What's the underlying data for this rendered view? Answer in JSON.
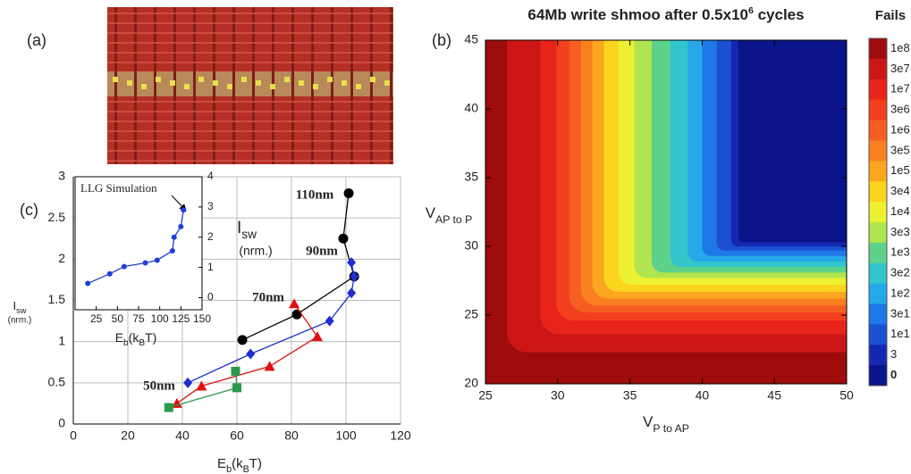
{
  "panel_labels": [
    "(a)",
    "(b)",
    "(c)"
  ],
  "chart_data": [
    {
      "type": "contour",
      "title": [
        {
          "text": "64Mb write shmoo after 0.5x10"
        },
        {
          "sup": "6"
        },
        {
          "text": " cycles"
        }
      ],
      "x_label": [
        {
          "text": "V"
        },
        {
          "sub": "P to AP"
        }
      ],
      "y_label": [
        {
          "text": "V"
        },
        {
          "sub": "AP to P"
        }
      ],
      "xlim": [
        25,
        50
      ],
      "ylim": [
        20,
        45
      ],
      "xticks": [
        25,
        30,
        35,
        40,
        45,
        50
      ],
      "yticks": [
        20,
        25,
        30,
        35,
        40,
        45
      ],
      "colorbar_title": "Fails",
      "levels": [
        {
          "label": "1e8",
          "color": "#9e0c0c"
        },
        {
          "label": "3e7",
          "color": "#cc1616"
        },
        {
          "label": "1e7",
          "color": "#e8231a"
        },
        {
          "label": "3e6",
          "color": "#f2401e"
        },
        {
          "label": "1e6",
          "color": "#f65e22"
        },
        {
          "label": "3e5",
          "color": "#f98020"
        },
        {
          "label": "1e5",
          "color": "#fba61e"
        },
        {
          "label": "3e4",
          "color": "#fbd41e"
        },
        {
          "label": "1e4",
          "color": "#eef032"
        },
        {
          "label": "3e3",
          "color": "#b0e450"
        },
        {
          "label": "1e3",
          "color": "#5ed28a"
        },
        {
          "label": "3e2",
          "color": "#30c6cc"
        },
        {
          "label": "1e2",
          "color": "#26a8e8"
        },
        {
          "label": "3e1",
          "color": "#1e78e6"
        },
        {
          "label": "1e1",
          "color": "#1c50d2"
        },
        {
          "label": "3",
          "color": "#1428b0"
        },
        {
          "label": "0",
          "color": "#0a1488"
        }
      ],
      "boundaries": [
        {
          "x": 26.5,
          "y": 22.3
        },
        {
          "x": 28.8,
          "y": 23.6
        },
        {
          "x": 29.9,
          "y": 24.6
        },
        {
          "x": 30.8,
          "y": 25.2
        },
        {
          "x": 31.6,
          "y": 25.7
        },
        {
          "x": 32.4,
          "y": 26.2
        },
        {
          "x": 33.2,
          "y": 26.7
        },
        {
          "x": 34.2,
          "y": 27.2
        },
        {
          "x": 35.3,
          "y": 27.7
        },
        {
          "x": 36.5,
          "y": 28.1
        },
        {
          "x": 37.8,
          "y": 28.5
        },
        {
          "x": 39.0,
          "y": 28.9
        },
        {
          "x": 40.0,
          "y": 29.3
        },
        {
          "x": 41.0,
          "y": 29.7
        },
        {
          "x": 42.0,
          "y": 30.0
        },
        {
          "x": 42.5,
          "y": 30.3
        }
      ]
    },
    {
      "type": "line",
      "x_label": [
        {
          "text": "E"
        },
        {
          "sub": "b"
        },
        {
          "text": "(k"
        },
        {
          "sub": "B"
        },
        {
          "text": "T)"
        }
      ],
      "y_label": [
        {
          "text": "I"
        },
        {
          "sub": "sw"
        }
      ],
      "y_label_note": "(nrm.)",
      "xlim": [
        0,
        120
      ],
      "ylim": [
        0,
        3
      ],
      "xticks": [
        0,
        20,
        40,
        60,
        80,
        100,
        120
      ],
      "yticks": [
        0,
        0.5,
        1,
        1.5,
        2,
        2.5,
        3
      ],
      "grid": true,
      "series": [
        {
          "name": "110nm",
          "color": "#000000",
          "marker": "circle",
          "x": [
            62,
            82,
            103,
            99,
            101
          ],
          "y": [
            1.02,
            1.33,
            1.79,
            2.25,
            2.8
          ]
        },
        {
          "name": "90nm",
          "color": "#1f2fd0",
          "marker": "diamond",
          "x": [
            42,
            65,
            94,
            102,
            103,
            102
          ],
          "y": [
            0.5,
            0.85,
            1.25,
            1.59,
            1.79,
            1.96
          ]
        },
        {
          "name": "70nm",
          "color": "#e01010",
          "marker": "triangle",
          "x": [
            38,
            47,
            72,
            89.5,
            81
          ],
          "y": [
            0.25,
            0.46,
            0.7,
            1.06,
            1.46
          ]
        },
        {
          "name": "50nm",
          "color": "#2a9a4a",
          "marker": "square",
          "x": [
            35,
            60,
            59.5
          ],
          "y": [
            0.2,
            0.44,
            0.64
          ]
        }
      ]
    },
    {
      "type": "line",
      "annotation": "LLG Simulation",
      "x_label": [
        {
          "text": "E"
        },
        {
          "sub": "b"
        },
        {
          "text": "(k"
        },
        {
          "sub": "B"
        },
        {
          "text": "T)"
        }
      ],
      "y_label": [
        {
          "text": "I"
        },
        {
          "sub": "sw"
        }
      ],
      "y_label_note": "(nrm.)",
      "xlim": [
        0,
        150
      ],
      "ylim": [
        -0.4,
        4
      ],
      "xticks": [
        25,
        50,
        75,
        100,
        125,
        150
      ],
      "yticks": [
        0,
        1,
        2,
        3,
        4
      ],
      "series": [
        {
          "color": "#1f3fd8",
          "marker": "circle",
          "x": [
            15,
            41,
            58,
            83,
            97,
            115,
            117,
            125,
            128
          ],
          "y": [
            0.47,
            0.79,
            1.03,
            1.15,
            1.24,
            1.55,
            2.0,
            2.35,
            2.9
          ]
        }
      ]
    }
  ]
}
